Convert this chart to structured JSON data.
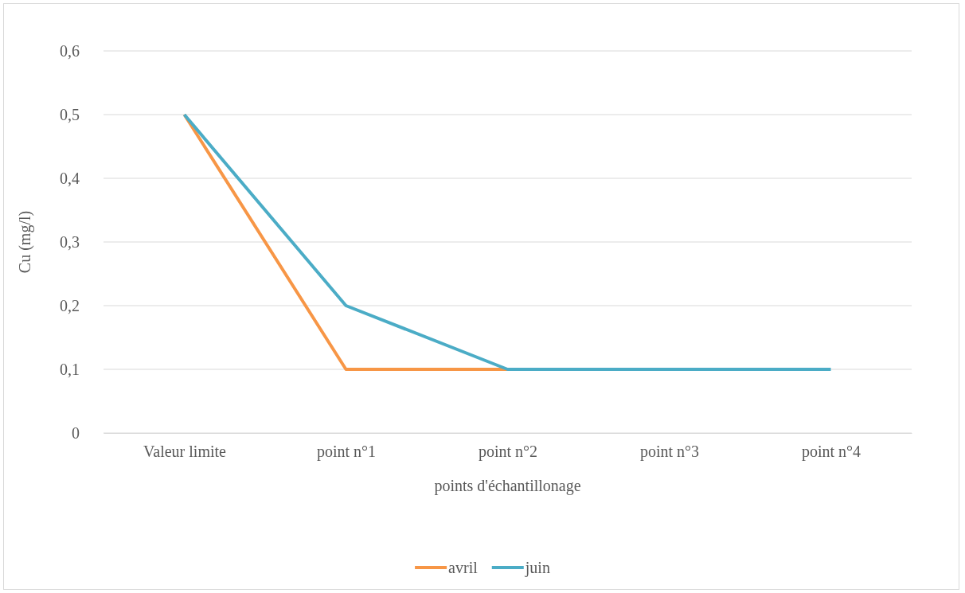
{
  "chart_data": {
    "type": "line",
    "xlabel": "points d'échantillonage",
    "ylabel": "Cu (mg/l)",
    "categories": [
      "Valeur limite",
      "point n°1",
      "point n°2",
      "point n°3",
      "point n°4"
    ],
    "series": [
      {
        "name": "avril",
        "color": "#f79646",
        "values": [
          0.5,
          0.1,
          0.1,
          null,
          null
        ]
      },
      {
        "name": "juin",
        "color": "#4bacc6",
        "values": [
          0.5,
          0.2,
          0.1,
          0.1,
          0.1
        ]
      }
    ],
    "ylim": [
      0,
      0.6
    ],
    "yticks": [
      {
        "value": 0,
        "label": "0"
      },
      {
        "value": 0.1,
        "label": "0,1"
      },
      {
        "value": 0.2,
        "label": "0,2"
      },
      {
        "value": 0.3,
        "label": "0,3"
      },
      {
        "value": 0.4,
        "label": "0,4"
      },
      {
        "value": 0.5,
        "label": "0,5"
      },
      {
        "value": 0.6,
        "label": "0,6"
      }
    ],
    "grid": "y",
    "legend": "bottom",
    "marker": "none",
    "line_style": "solid"
  }
}
